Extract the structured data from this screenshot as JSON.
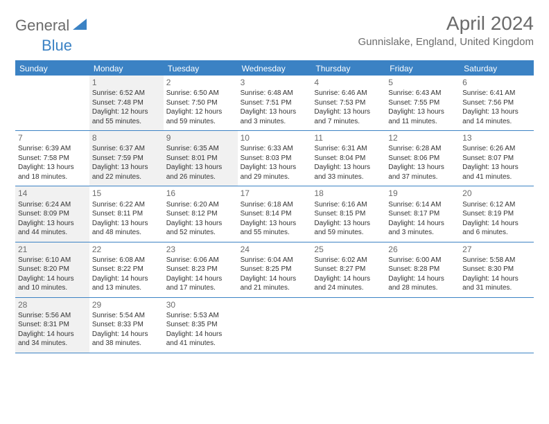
{
  "logo": {
    "text1": "General",
    "text2": "Blue"
  },
  "title": "April 2024",
  "location": "Gunnislake, England, United Kingdom",
  "colors": {
    "accent": "#3b82c4",
    "text_gray": "#6b6b6b",
    "body_text": "#333333",
    "shaded_bg": "#f1f1f1",
    "white": "#ffffff"
  },
  "fonts": {
    "title_size": 28,
    "location_size": 15,
    "day_header_size": 12,
    "day_num_size": 12,
    "cell_text_size": 10
  },
  "layout": {
    "columns": 7,
    "rows": 5,
    "cell_min_height": 78
  },
  "day_headers": [
    "Sunday",
    "Monday",
    "Tuesday",
    "Wednesday",
    "Thursday",
    "Friday",
    "Saturday"
  ],
  "weeks": [
    [
      {
        "num": "",
        "shaded": false,
        "sunrise": "",
        "sunset": "",
        "daylight1": "",
        "daylight2": ""
      },
      {
        "num": "1",
        "shaded": true,
        "sunrise": "Sunrise: 6:52 AM",
        "sunset": "Sunset: 7:48 PM",
        "daylight1": "Daylight: 12 hours",
        "daylight2": "and 55 minutes."
      },
      {
        "num": "2",
        "shaded": false,
        "sunrise": "Sunrise: 6:50 AM",
        "sunset": "Sunset: 7:50 PM",
        "daylight1": "Daylight: 12 hours",
        "daylight2": "and 59 minutes."
      },
      {
        "num": "3",
        "shaded": false,
        "sunrise": "Sunrise: 6:48 AM",
        "sunset": "Sunset: 7:51 PM",
        "daylight1": "Daylight: 13 hours",
        "daylight2": "and 3 minutes."
      },
      {
        "num": "4",
        "shaded": false,
        "sunrise": "Sunrise: 6:46 AM",
        "sunset": "Sunset: 7:53 PM",
        "daylight1": "Daylight: 13 hours",
        "daylight2": "and 7 minutes."
      },
      {
        "num": "5",
        "shaded": false,
        "sunrise": "Sunrise: 6:43 AM",
        "sunset": "Sunset: 7:55 PM",
        "daylight1": "Daylight: 13 hours",
        "daylight2": "and 11 minutes."
      },
      {
        "num": "6",
        "shaded": false,
        "sunrise": "Sunrise: 6:41 AM",
        "sunset": "Sunset: 7:56 PM",
        "daylight1": "Daylight: 13 hours",
        "daylight2": "and 14 minutes."
      }
    ],
    [
      {
        "num": "7",
        "shaded": false,
        "sunrise": "Sunrise: 6:39 AM",
        "sunset": "Sunset: 7:58 PM",
        "daylight1": "Daylight: 13 hours",
        "daylight2": "and 18 minutes."
      },
      {
        "num": "8",
        "shaded": true,
        "sunrise": "Sunrise: 6:37 AM",
        "sunset": "Sunset: 7:59 PM",
        "daylight1": "Daylight: 13 hours",
        "daylight2": "and 22 minutes."
      },
      {
        "num": "9",
        "shaded": true,
        "sunrise": "Sunrise: 6:35 AM",
        "sunset": "Sunset: 8:01 PM",
        "daylight1": "Daylight: 13 hours",
        "daylight2": "and 26 minutes."
      },
      {
        "num": "10",
        "shaded": false,
        "sunrise": "Sunrise: 6:33 AM",
        "sunset": "Sunset: 8:03 PM",
        "daylight1": "Daylight: 13 hours",
        "daylight2": "and 29 minutes."
      },
      {
        "num": "11",
        "shaded": false,
        "sunrise": "Sunrise: 6:31 AM",
        "sunset": "Sunset: 8:04 PM",
        "daylight1": "Daylight: 13 hours",
        "daylight2": "and 33 minutes."
      },
      {
        "num": "12",
        "shaded": false,
        "sunrise": "Sunrise: 6:28 AM",
        "sunset": "Sunset: 8:06 PM",
        "daylight1": "Daylight: 13 hours",
        "daylight2": "and 37 minutes."
      },
      {
        "num": "13",
        "shaded": false,
        "sunrise": "Sunrise: 6:26 AM",
        "sunset": "Sunset: 8:07 PM",
        "daylight1": "Daylight: 13 hours",
        "daylight2": "and 41 minutes."
      }
    ],
    [
      {
        "num": "14",
        "shaded": true,
        "sunrise": "Sunrise: 6:24 AM",
        "sunset": "Sunset: 8:09 PM",
        "daylight1": "Daylight: 13 hours",
        "daylight2": "and 44 minutes."
      },
      {
        "num": "15",
        "shaded": false,
        "sunrise": "Sunrise: 6:22 AM",
        "sunset": "Sunset: 8:11 PM",
        "daylight1": "Daylight: 13 hours",
        "daylight2": "and 48 minutes."
      },
      {
        "num": "16",
        "shaded": false,
        "sunrise": "Sunrise: 6:20 AM",
        "sunset": "Sunset: 8:12 PM",
        "daylight1": "Daylight: 13 hours",
        "daylight2": "and 52 minutes."
      },
      {
        "num": "17",
        "shaded": false,
        "sunrise": "Sunrise: 6:18 AM",
        "sunset": "Sunset: 8:14 PM",
        "daylight1": "Daylight: 13 hours",
        "daylight2": "and 55 minutes."
      },
      {
        "num": "18",
        "shaded": false,
        "sunrise": "Sunrise: 6:16 AM",
        "sunset": "Sunset: 8:15 PM",
        "daylight1": "Daylight: 13 hours",
        "daylight2": "and 59 minutes."
      },
      {
        "num": "19",
        "shaded": false,
        "sunrise": "Sunrise: 6:14 AM",
        "sunset": "Sunset: 8:17 PM",
        "daylight1": "Daylight: 14 hours",
        "daylight2": "and 3 minutes."
      },
      {
        "num": "20",
        "shaded": false,
        "sunrise": "Sunrise: 6:12 AM",
        "sunset": "Sunset: 8:19 PM",
        "daylight1": "Daylight: 14 hours",
        "daylight2": "and 6 minutes."
      }
    ],
    [
      {
        "num": "21",
        "shaded": true,
        "sunrise": "Sunrise: 6:10 AM",
        "sunset": "Sunset: 8:20 PM",
        "daylight1": "Daylight: 14 hours",
        "daylight2": "and 10 minutes."
      },
      {
        "num": "22",
        "shaded": false,
        "sunrise": "Sunrise: 6:08 AM",
        "sunset": "Sunset: 8:22 PM",
        "daylight1": "Daylight: 14 hours",
        "daylight2": "and 13 minutes."
      },
      {
        "num": "23",
        "shaded": false,
        "sunrise": "Sunrise: 6:06 AM",
        "sunset": "Sunset: 8:23 PM",
        "daylight1": "Daylight: 14 hours",
        "daylight2": "and 17 minutes."
      },
      {
        "num": "24",
        "shaded": false,
        "sunrise": "Sunrise: 6:04 AM",
        "sunset": "Sunset: 8:25 PM",
        "daylight1": "Daylight: 14 hours",
        "daylight2": "and 21 minutes."
      },
      {
        "num": "25",
        "shaded": false,
        "sunrise": "Sunrise: 6:02 AM",
        "sunset": "Sunset: 8:27 PM",
        "daylight1": "Daylight: 14 hours",
        "daylight2": "and 24 minutes."
      },
      {
        "num": "26",
        "shaded": false,
        "sunrise": "Sunrise: 6:00 AM",
        "sunset": "Sunset: 8:28 PM",
        "daylight1": "Daylight: 14 hours",
        "daylight2": "and 28 minutes."
      },
      {
        "num": "27",
        "shaded": false,
        "sunrise": "Sunrise: 5:58 AM",
        "sunset": "Sunset: 8:30 PM",
        "daylight1": "Daylight: 14 hours",
        "daylight2": "and 31 minutes."
      }
    ],
    [
      {
        "num": "28",
        "shaded": true,
        "sunrise": "Sunrise: 5:56 AM",
        "sunset": "Sunset: 8:31 PM",
        "daylight1": "Daylight: 14 hours",
        "daylight2": "and 34 minutes."
      },
      {
        "num": "29",
        "shaded": false,
        "sunrise": "Sunrise: 5:54 AM",
        "sunset": "Sunset: 8:33 PM",
        "daylight1": "Daylight: 14 hours",
        "daylight2": "and 38 minutes."
      },
      {
        "num": "30",
        "shaded": false,
        "sunrise": "Sunrise: 5:53 AM",
        "sunset": "Sunset: 8:35 PM",
        "daylight1": "Daylight: 14 hours",
        "daylight2": "and 41 minutes."
      },
      {
        "num": "",
        "shaded": false,
        "sunrise": "",
        "sunset": "",
        "daylight1": "",
        "daylight2": ""
      },
      {
        "num": "",
        "shaded": false,
        "sunrise": "",
        "sunset": "",
        "daylight1": "",
        "daylight2": ""
      },
      {
        "num": "",
        "shaded": false,
        "sunrise": "",
        "sunset": "",
        "daylight1": "",
        "daylight2": ""
      },
      {
        "num": "",
        "shaded": false,
        "sunrise": "",
        "sunset": "",
        "daylight1": "",
        "daylight2": ""
      }
    ]
  ]
}
